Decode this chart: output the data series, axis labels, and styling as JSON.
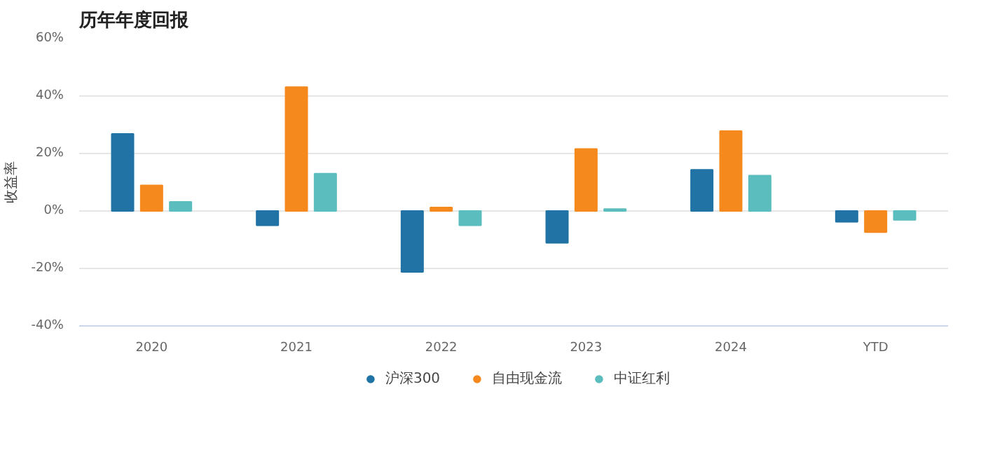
{
  "chart_data": {
    "type": "bar",
    "title": "历年年度回报",
    "ylabel": "收益率",
    "categories": [
      "2020",
      "2021",
      "2022",
      "2023",
      "2024",
      "YTD"
    ],
    "series": [
      {
        "name": "沪深300",
        "color": "#2073a4",
        "values": [
          26.8,
          -5.0,
          -21.2,
          -11.1,
          14.3,
          -3.8
        ]
      },
      {
        "name": "自由现金流",
        "color": "#f5891e",
        "values": [
          8.9,
          43.1,
          1.2,
          21.6,
          27.8,
          -7.4
        ]
      },
      {
        "name": "中证红利",
        "color": "#5bbdbd",
        "values": [
          3.2,
          13.0,
          -5.0,
          0.7,
          12.3,
          -3.1
        ]
      }
    ],
    "ylim": [
      -40,
      60
    ],
    "yticks": [
      {
        "value": -40,
        "label": "-40%"
      },
      {
        "value": -20,
        "label": "-20%"
      },
      {
        "value": 0,
        "label": "0%"
      },
      {
        "value": 20,
        "label": "20%"
      },
      {
        "value": 40,
        "label": "40%"
      },
      {
        "value": 60,
        "label": "60%"
      }
    ],
    "grid": "y",
    "legend": "bottom"
  }
}
